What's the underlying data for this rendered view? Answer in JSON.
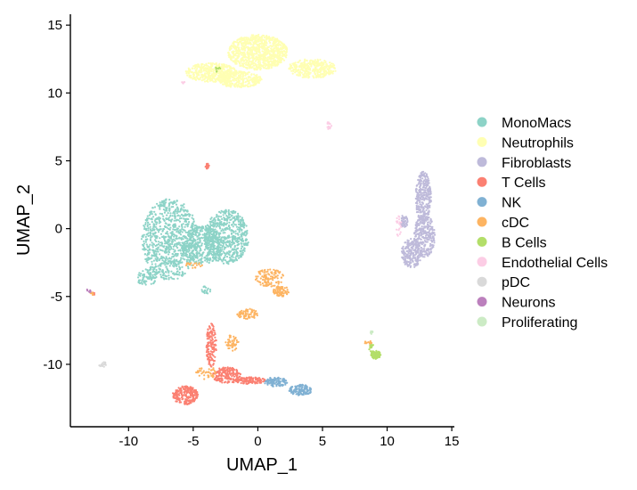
{
  "chart_data": {
    "type": "scatter",
    "title": "",
    "xlabel": "UMAP_1",
    "ylabel": "UMAP_2",
    "xlim": [
      -14.5,
      15.2
    ],
    "ylim": [
      -14.6,
      15.8
    ],
    "xticks": [
      -10,
      -5,
      0,
      5,
      10,
      15
    ],
    "yticks": [
      15,
      10,
      5,
      0,
      -5,
      -10
    ],
    "xtick_labels": [
      "-10",
      "-5",
      "0",
      "5",
      "10",
      "15"
    ],
    "ytick_labels": [
      "15",
      "10",
      "5",
      "0",
      "-5",
      "-10"
    ],
    "grid": false,
    "legend_position": "right",
    "series": [
      {
        "name": "MonoMacs",
        "color": "#8DD3C7",
        "regions": [
          {
            "cx": -6.8,
            "cy": -0.8,
            "rx": 2.2,
            "ry": 3.0,
            "n": 900
          },
          {
            "cx": -2.4,
            "cy": -0.6,
            "rx": 1.7,
            "ry": 2.0,
            "n": 600
          },
          {
            "cx": -4.3,
            "cy": -1.2,
            "rx": 1.6,
            "ry": 1.4,
            "n": 400
          },
          {
            "cx": -8.6,
            "cy": -3.6,
            "rx": 0.8,
            "ry": 0.6,
            "n": 80
          },
          {
            "cx": -4.0,
            "cy": -4.5,
            "rx": 0.4,
            "ry": 0.3,
            "n": 20
          }
        ]
      },
      {
        "name": "Neutrophils",
        "color": "#FFFFB3",
        "regions": [
          {
            "cx": 0.0,
            "cy": 13.0,
            "rx": 2.3,
            "ry": 1.3,
            "n": 900
          },
          {
            "cx": -3.6,
            "cy": 11.5,
            "rx": 2.0,
            "ry": 0.7,
            "n": 400
          },
          {
            "cx": 4.2,
            "cy": 11.8,
            "rx": 1.9,
            "ry": 0.7,
            "n": 350
          },
          {
            "cx": -1.5,
            "cy": 11.0,
            "rx": 1.8,
            "ry": 0.6,
            "n": 300
          }
        ]
      },
      {
        "name": "Fibroblasts",
        "color": "#BEBADA",
        "regions": [
          {
            "cx": 12.8,
            "cy": 2.3,
            "rx": 0.6,
            "ry": 1.9,
            "n": 300
          },
          {
            "cx": 12.9,
            "cy": -0.5,
            "rx": 0.8,
            "ry": 1.6,
            "n": 300
          },
          {
            "cx": 11.9,
            "cy": -1.8,
            "rx": 0.8,
            "ry": 1.1,
            "n": 220
          },
          {
            "cx": 11.3,
            "cy": 0.5,
            "rx": 0.3,
            "ry": 0.5,
            "n": 40
          }
        ]
      },
      {
        "name": "T Cells",
        "color": "#FB8072",
        "regions": [
          {
            "cx": -5.6,
            "cy": -12.3,
            "rx": 1.0,
            "ry": 0.7,
            "n": 220
          },
          {
            "cx": -3.6,
            "cy": -8.6,
            "rx": 0.4,
            "ry": 1.6,
            "n": 140
          },
          {
            "cx": -2.4,
            "cy": -10.8,
            "rx": 1.1,
            "ry": 0.6,
            "n": 180
          },
          {
            "cx": -0.6,
            "cy": -11.2,
            "rx": 1.2,
            "ry": 0.25,
            "n": 120
          },
          {
            "cx": -3.9,
            "cy": 4.6,
            "rx": 0.15,
            "ry": 0.2,
            "n": 18
          },
          {
            "cx": -12.7,
            "cy": -4.8,
            "rx": 0.2,
            "ry": 0.1,
            "n": 6
          }
        ]
      },
      {
        "name": "NK",
        "color": "#80B1D3",
        "regions": [
          {
            "cx": 1.4,
            "cy": -11.3,
            "rx": 0.9,
            "ry": 0.35,
            "n": 110
          },
          {
            "cx": 3.3,
            "cy": -11.9,
            "rx": 0.9,
            "ry": 0.4,
            "n": 140
          }
        ]
      },
      {
        "name": "cDC",
        "color": "#FDB462",
        "regions": [
          {
            "cx": 0.9,
            "cy": -3.6,
            "rx": 1.1,
            "ry": 0.7,
            "n": 110
          },
          {
            "cx": 1.8,
            "cy": -4.6,
            "rx": 0.6,
            "ry": 0.4,
            "n": 80
          },
          {
            "cx": -0.8,
            "cy": -6.3,
            "rx": 0.8,
            "ry": 0.4,
            "n": 70
          },
          {
            "cx": -2.0,
            "cy": -8.4,
            "rx": 0.5,
            "ry": 0.6,
            "n": 50
          },
          {
            "cx": -4.0,
            "cy": -10.6,
            "rx": 0.8,
            "ry": 0.5,
            "n": 40
          },
          {
            "cx": -5.0,
            "cy": -2.7,
            "rx": 0.7,
            "ry": 0.2,
            "n": 20
          },
          {
            "cx": 8.5,
            "cy": -8.4,
            "rx": 0.3,
            "ry": 0.15,
            "n": 12
          },
          {
            "cx": -12.8,
            "cy": -4.8,
            "rx": 0.15,
            "ry": 0.1,
            "n": 5
          }
        ]
      },
      {
        "name": "B Cells",
        "color": "#B3DE69",
        "regions": [
          {
            "cx": 9.1,
            "cy": -9.3,
            "rx": 0.4,
            "ry": 0.3,
            "n": 80
          },
          {
            "cx": 8.8,
            "cy": -8.8,
            "rx": 0.2,
            "ry": 0.3,
            "n": 15
          },
          {
            "cx": -3.1,
            "cy": 11.7,
            "rx": 0.3,
            "ry": 0.2,
            "n": 8
          }
        ]
      },
      {
        "name": "Endothelial Cells",
        "color": "#FCCDE5",
        "regions": [
          {
            "cx": 5.5,
            "cy": 7.6,
            "rx": 0.2,
            "ry": 0.3,
            "n": 15
          },
          {
            "cx": 10.9,
            "cy": 0.2,
            "rx": 0.2,
            "ry": 0.8,
            "n": 20
          },
          {
            "cx": -5.8,
            "cy": 10.8,
            "rx": 0.2,
            "ry": 0.1,
            "n": 5
          }
        ]
      },
      {
        "name": "pDC",
        "color": "#D9D9D9",
        "regions": [
          {
            "cx": -12.0,
            "cy": -10.0,
            "rx": 0.3,
            "ry": 0.2,
            "n": 15
          }
        ]
      },
      {
        "name": "Neurons",
        "color": "#BC80BD",
        "regions": [
          {
            "cx": -13.1,
            "cy": -4.6,
            "rx": 0.2,
            "ry": 0.15,
            "n": 8
          }
        ]
      },
      {
        "name": "Proliferating",
        "color": "#CCEBC5",
        "regions": [
          {
            "cx": 8.8,
            "cy": -7.6,
            "rx": 0.1,
            "ry": 0.2,
            "n": 8
          }
        ]
      }
    ]
  }
}
